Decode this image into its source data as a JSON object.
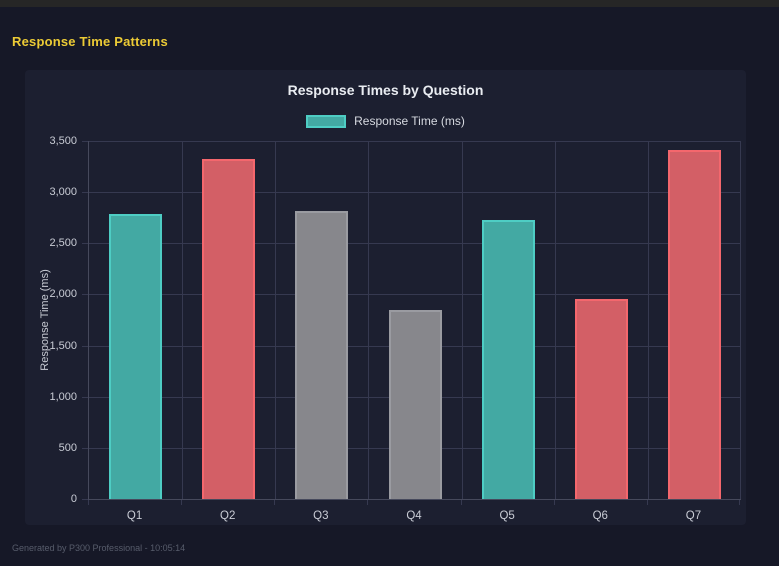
{
  "page": {
    "header_title": "Response Time Patterns",
    "footer": "Generated by P300 Professional - 10:05:14"
  },
  "colors": {
    "outer_bg": "#161827",
    "top_strip": "#262626",
    "panel_bg": "#1c1f30",
    "header_yellow": "#eccb35",
    "title_text": "#e9ecf1",
    "legend_text": "#d6d9e0",
    "axis_text": "#c9ccd5",
    "grid": "#363950",
    "axis_line": "#46495c",
    "footer_text": "#575c6b",
    "palette": {
      "teal": {
        "fill": "#43a9a3",
        "border": "#4ecdc4"
      },
      "red": {
        "fill": "#d35f66",
        "border": "#f4676d"
      },
      "gray": {
        "fill": "#87878c",
        "border": "#9a9ba1"
      }
    }
  },
  "chart_data": {
    "type": "bar",
    "title": "Response Times by Question",
    "legend": [
      "Response Time (ms)"
    ],
    "legend_position": "top",
    "xlabel": "",
    "ylabel": "Response Time (ms)",
    "categories": [
      "Q1",
      "Q2",
      "Q3",
      "Q4",
      "Q5",
      "Q6",
      "Q7"
    ],
    "values": [
      2790,
      3325,
      2815,
      1845,
      2725,
      1955,
      3410
    ],
    "bar_colors": [
      "teal",
      "red",
      "gray",
      "gray",
      "teal",
      "red",
      "red"
    ],
    "ylim": [
      0,
      3500
    ],
    "ytick_step": 500,
    "ytick_labels": [
      "3,500",
      "3,000",
      "2,500",
      "2,000",
      "1,500",
      "1,000",
      "500",
      "0"
    ],
    "grid": true
  }
}
